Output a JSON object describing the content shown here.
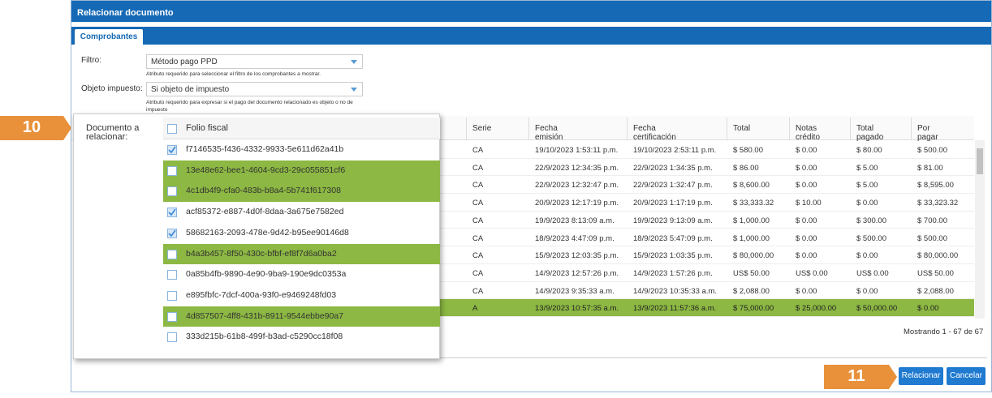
{
  "dialog": {
    "title": "Relacionar documento",
    "tab": "Comprobantes"
  },
  "form": {
    "filter_label": "Filtro:",
    "filter_value": "Método pago PPD",
    "filter_hint": "Atributo requerido para seleccionar el filtro de los comprobantes a mostrar.",
    "tax_label": "Objeto impuesto:",
    "tax_value": "Si objeto de impuesto",
    "tax_hint": "Atributo requerido para expresar si el pago del documento relacionado es objeto o no de impuesto",
    "doc_label": "Documento a relacionar:"
  },
  "table": {
    "headers": [
      "Serie",
      "Fecha emisión",
      "Fecha certificación",
      "Total",
      "Notas crédito",
      "Total pagado",
      "Por pagar"
    ],
    "rows": [
      [
        "CA",
        "19/10/2023 1:53:11 p.m.",
        "19/10/2023 2:53:11 p.m.",
        "$ 580.00",
        "$ 0.00",
        "$ 80.00",
        "$ 500.00"
      ],
      [
        "CA",
        "22/9/2023 12:34:35 p.m.",
        "22/9/2023 1:34:35 p.m.",
        "$ 86.00",
        "$ 0.00",
        "$ 5.00",
        "$ 81.00"
      ],
      [
        "CA",
        "22/9/2023 12:32:47 p.m.",
        "22/9/2023 1:32:47 p.m.",
        "$ 8,600.00",
        "$ 0.00",
        "$ 5.00",
        "$ 8,595.00"
      ],
      [
        "CA",
        "20/9/2023 12:17:19 p.m.",
        "20/9/2023 1:17:19 p.m.",
        "$ 33,333.32",
        "$ 10.00",
        "$ 0.00",
        "$ 33,323.32"
      ],
      [
        "CA",
        "19/9/2023 8:13:09 a.m.",
        "19/9/2023 9:13:09 a.m.",
        "$ 1,000.00",
        "$ 0.00",
        "$ 300.00",
        "$ 700.00"
      ],
      [
        "CA",
        "18/9/2023 4:47:09 p.m.",
        "18/9/2023 5:47:09 p.m.",
        "$ 1,000.00",
        "$ 0.00",
        "$ 500.00",
        "$ 500.00"
      ],
      [
        "CA",
        "15/9/2023 12:03:35 p.m.",
        "15/9/2023 1:03:35 p.m.",
        "$ 80,000.00",
        "$ 0.00",
        "$ 0.00",
        "$ 80,000.00"
      ],
      [
        "CA",
        "14/9/2023 12:57:26 p.m.",
        "14/9/2023 1:57:26 p.m.",
        "US$ 50.00",
        "US$ 0.00",
        "US$ 0.00",
        "US$ 50.00"
      ],
      [
        "CA",
        "14/9/2023 9:35:33 a.m.",
        "14/9/2023 10:35:33 a.m.",
        "$ 2,088.00",
        "$ 0.00",
        "$ 0.00",
        "$ 2,088.00"
      ],
      [
        "A",
        "13/9/2023 10:57:35 a.m.",
        "13/9/2023 11:57:36 a.m.",
        "$ 75,000.00",
        "$ 25,000.00",
        "$ 50,000.00",
        "$ 0.00"
      ]
    ],
    "highlighted_row": 9,
    "footer": "Mostrando 1 - 67 de 67"
  },
  "dropdown": {
    "header": "Folio fiscal",
    "items": [
      {
        "folio": "f7146535-f436-4332-9933-5e611d62a41b",
        "checked": true,
        "highlighted": false
      },
      {
        "folio": "13e48e62-bee1-4604-9cd3-29c055851cf6",
        "checked": false,
        "highlighted": true
      },
      {
        "folio": "4c1db4f9-cfa0-483b-b8a4-5b741f617308",
        "checked": false,
        "highlighted": true
      },
      {
        "folio": "acf85372-e887-4d0f-8daa-3a675e7582ed",
        "checked": true,
        "highlighted": false
      },
      {
        "folio": "58682163-2093-478e-9d42-b95ee90146d8",
        "checked": true,
        "highlighted": false
      },
      {
        "folio": "b4a3b457-8f50-430c-bfbf-ef8f7d6a0ba2",
        "checked": false,
        "highlighted": true
      },
      {
        "folio": "0a85b4fb-9890-4e90-9ba9-190e9dc0353a",
        "checked": false,
        "highlighted": false
      },
      {
        "folio": "e895fbfc-7dcf-400a-93f0-e9469248fd03",
        "checked": false,
        "highlighted": false
      },
      {
        "folio": "4d857507-4ff8-431b-8911-9544ebbe90a7",
        "checked": false,
        "highlighted": true
      },
      {
        "folio": "333d215b-61b8-499f-b3ad-c5290cc18f08",
        "checked": false,
        "highlighted": false
      }
    ]
  },
  "buttons": {
    "relate": "Relacionar",
    "cancel": "Cancelar"
  },
  "steps": [
    "10",
    "11"
  ]
}
